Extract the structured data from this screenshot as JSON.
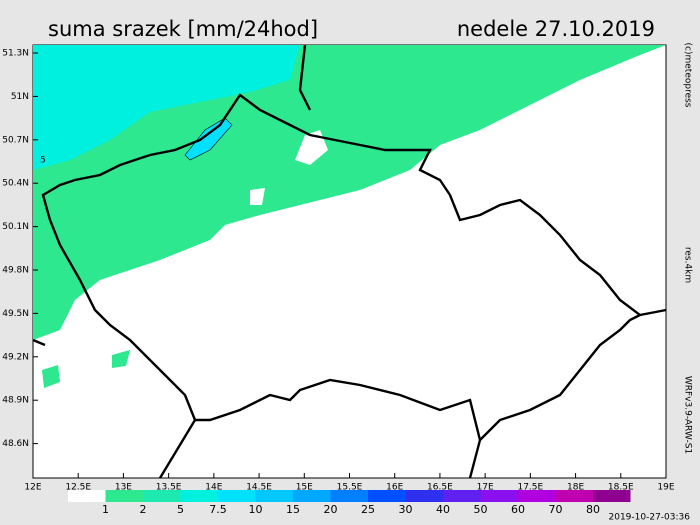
{
  "header": {
    "title": "suma srazek [mm/24hod]",
    "date": "nedele 27.10.2019"
  },
  "side_labels": {
    "copyright": "(c)meteopress",
    "resolution": "res.4km",
    "model": "WRFv3.9-ARW-S1"
  },
  "lat_labels": [
    "51.3N",
    "51N",
    "50.7N",
    "50.4N",
    "50.1N",
    "49.8N",
    "49.5N",
    "49.2N",
    "48.9N",
    "48.6N"
  ],
  "lon_labels": [
    "12E",
    "12.5E",
    "13E",
    "13.5E",
    "14E",
    "14.5E",
    "15E",
    "15.5E",
    "16E",
    "16.5E",
    "17E",
    "17.5E",
    "18E",
    "18.5E",
    "19E"
  ],
  "contour_label": "5",
  "legend": {
    "labels": [
      "1",
      "2",
      "5",
      "7.5",
      "10",
      "15",
      "20",
      "25",
      "30",
      "40",
      "50",
      "60",
      "70",
      "80"
    ],
    "colors": [
      "#ffffff",
      "#2ee890",
      "#1de8b0",
      "#00f0e0",
      "#00e0ff",
      "#00c8ff",
      "#00a8ff",
      "#0080ff",
      "#0050ff",
      "#3030f0",
      "#6020f0",
      "#8a10f0",
      "#b000e0",
      "#c000b0",
      "#900090"
    ]
  },
  "timestamp": "2019-10-27-03:36"
}
